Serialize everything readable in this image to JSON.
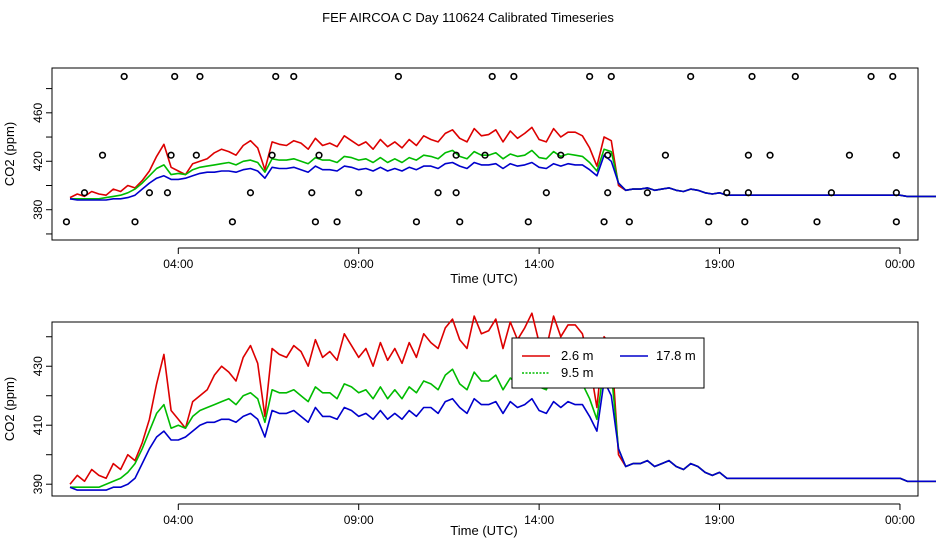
{
  "title": "FEF AIRCOA C  Day 110624  Calibrated Timeseries",
  "colors": {
    "s26": "#dd0000",
    "s95": "#00bb00",
    "s178": "#0000cc",
    "axis": "#000000"
  },
  "chart_data": [
    {
      "type": "line+scatter",
      "panel": "top",
      "xlabel": "Time (UTC)",
      "ylabel": "CO2 (ppm)",
      "x_unit": "hours since 00:00 UTC",
      "xlim": [
        0.5,
        24.5
      ],
      "ylim": [
        355,
        497
      ],
      "x_ticks": [
        {
          "value": 4,
          "label": "04:00"
        },
        {
          "value": 9,
          "label": "09:00"
        },
        {
          "value": 14,
          "label": "14:00"
        },
        {
          "value": 19,
          "label": "19:00"
        },
        {
          "value": 24,
          "label": "00:00"
        }
      ],
      "y_ticks": [
        {
          "value": 380,
          "label": "380"
        },
        {
          "value": 420,
          "label": "420"
        },
        {
          "value": 460,
          "label": "460"
        }
      ],
      "y_ticks_minor": [
        360,
        400,
        440,
        480
      ],
      "circles": {
        "name": "calibration/flag points",
        "points": [
          [
            0.9,
            370
          ],
          [
            1.4,
            394
          ],
          [
            1.9,
            425
          ],
          [
            2.5,
            490
          ],
          [
            2.8,
            370
          ],
          [
            3.2,
            394
          ],
          [
            3.7,
            394
          ],
          [
            3.9,
            490
          ],
          [
            3.8,
            425
          ],
          [
            4.5,
            425
          ],
          [
            4.6,
            490
          ],
          [
            5.5,
            370
          ],
          [
            6.0,
            394
          ],
          [
            6.6,
            425
          ],
          [
            6.7,
            490
          ],
          [
            7.2,
            490
          ],
          [
            7.8,
            370
          ],
          [
            7.7,
            394
          ],
          [
            7.9,
            425
          ],
          [
            8.4,
            370
          ],
          [
            9.0,
            394
          ],
          [
            10.1,
            490
          ],
          [
            10.6,
            370
          ],
          [
            11.2,
            394
          ],
          [
            11.8,
            370
          ],
          [
            11.7,
            394
          ],
          [
            11.7,
            425
          ],
          [
            12.5,
            425
          ],
          [
            12.7,
            490
          ],
          [
            13.3,
            490
          ],
          [
            13.7,
            370
          ],
          [
            14.2,
            394
          ],
          [
            14.6,
            425
          ],
          [
            15.4,
            490
          ],
          [
            15.8,
            370
          ],
          [
            15.9,
            425
          ],
          [
            15.9,
            394
          ],
          [
            16.0,
            490
          ],
          [
            16.5,
            370
          ],
          [
            17.0,
            394
          ],
          [
            17.5,
            425
          ],
          [
            18.2,
            490
          ],
          [
            18.7,
            370
          ],
          [
            19.2,
            394
          ],
          [
            19.7,
            370
          ],
          [
            19.8,
            394
          ],
          [
            19.8,
            425
          ],
          [
            19.9,
            490
          ],
          [
            20.4,
            425
          ],
          [
            21.1,
            490
          ],
          [
            21.7,
            370
          ],
          [
            22.1,
            394
          ],
          [
            22.6,
            425
          ],
          [
            23.2,
            490
          ],
          [
            23.8,
            490
          ],
          [
            23.9,
            425
          ],
          [
            23.9,
            394
          ],
          [
            23.9,
            370
          ]
        ]
      },
      "series": [
        {
          "name": "2.6 m",
          "color": "#dd0000",
          "kind": "inlet1"
        },
        {
          "name": "9.5 m",
          "color": "#00bb00",
          "kind": "inlet2"
        },
        {
          "name": "17.8 m",
          "color": "#0000cc",
          "kind": "inlet3"
        }
      ]
    },
    {
      "type": "line",
      "panel": "bottom",
      "xlabel": "Time (UTC)",
      "ylabel": "CO2 (ppm)",
      "x_unit": "hours since 00:00 UTC",
      "xlim": [
        0.5,
        24.5
      ],
      "ylim": [
        386,
        445
      ],
      "x_ticks": [
        {
          "value": 4,
          "label": "04:00"
        },
        {
          "value": 9,
          "label": "09:00"
        },
        {
          "value": 14,
          "label": "14:00"
        },
        {
          "value": 19,
          "label": "19:00"
        },
        {
          "value": 24,
          "label": "00:00"
        }
      ],
      "y_ticks": [
        {
          "value": 390,
          "label": "390"
        },
        {
          "value": 410,
          "label": "410"
        },
        {
          "value": 430,
          "label": "430"
        }
      ],
      "y_ticks_minor": [
        400,
        420,
        440
      ],
      "legend": {
        "position": "top-right of plotting region",
        "entries": [
          {
            "label": "2.6 m",
            "color": "#dd0000",
            "style": "solid"
          },
          {
            "label": "17.8 m",
            "color": "#0000cc",
            "style": "solid"
          },
          {
            "label": "9.5 m",
            "color": "#00bb00",
            "style": "dotted"
          }
        ]
      },
      "series": [
        {
          "name": "2.6 m",
          "color": "#dd0000",
          "kind": "inlet1"
        },
        {
          "name": "9.5 m",
          "color": "#00bb00",
          "kind": "inlet2"
        },
        {
          "name": "17.8 m",
          "color": "#0000cc",
          "kind": "inlet3"
        }
      ]
    }
  ],
  "series_values": {
    "x_start": 1.0,
    "x_step": 0.2,
    "inlet1": [
      390,
      393,
      391,
      395,
      393,
      392,
      397,
      395,
      400,
      398,
      404,
      412,
      424,
      434,
      415,
      412,
      409,
      418,
      420,
      422,
      427,
      430,
      428,
      425,
      433,
      437,
      431,
      413,
      436,
      434,
      433,
      437,
      435,
      430,
      439,
      433,
      435,
      432,
      441,
      437,
      433,
      436,
      430,
      438,
      432,
      436,
      431,
      438,
      433,
      441,
      438,
      436,
      443,
      446,
      439,
      436,
      447,
      441,
      442,
      446,
      436,
      445,
      439,
      443,
      448,
      438,
      436,
      447,
      440,
      444,
      444,
      441,
      431,
      416,
      440,
      437,
      400,
      396,
      397,
      397,
      398,
      396,
      397,
      398,
      396,
      395,
      397,
      396,
      394,
      393,
      394,
      392,
      392,
      392,
      392,
      392,
      392,
      392,
      392,
      392,
      392,
      392,
      392,
      392,
      392,
      392,
      392,
      392,
      392,
      392,
      392,
      392,
      392,
      392,
      392,
      392,
      391,
      391,
      391,
      391,
      391,
      391
    ],
    "inlet2": [
      389,
      389,
      389,
      389,
      389,
      390,
      391,
      392,
      394,
      397,
      402,
      408,
      414,
      417,
      409,
      410,
      409,
      413,
      415,
      416,
      417,
      418,
      419,
      417,
      420,
      421,
      419,
      411,
      422,
      421,
      421,
      422,
      420,
      418,
      423,
      421,
      421,
      419,
      424,
      423,
      421,
      422,
      419,
      423,
      419,
      422,
      419,
      423,
      421,
      425,
      424,
      422,
      427,
      429,
      424,
      422,
      428,
      425,
      425,
      427,
      422,
      426,
      424,
      425,
      429,
      423,
      422,
      428,
      424,
      426,
      425,
      424,
      419,
      412,
      430,
      428,
      402,
      396,
      397,
      397,
      398,
      396,
      397,
      398,
      396,
      395,
      397,
      396,
      394,
      393,
      394,
      392,
      392,
      392,
      392,
      392,
      392,
      392,
      392,
      392,
      392,
      392,
      392,
      392,
      392,
      392,
      392,
      392,
      392,
      392,
      392,
      392,
      392,
      392,
      392,
      392,
      391,
      391,
      391,
      391,
      391,
      391
    ],
    "inlet3": [
      389,
      388,
      388,
      388,
      388,
      388,
      389,
      389,
      390,
      392,
      397,
      402,
      406,
      408,
      405,
      405,
      406,
      408,
      410,
      411,
      411,
      412,
      412,
      411,
      413,
      414,
      412,
      406,
      415,
      414,
      414,
      415,
      413,
      411,
      416,
      413,
      413,
      412,
      416,
      415,
      413,
      414,
      412,
      415,
      412,
      414,
      412,
      415,
      413,
      416,
      416,
      414,
      418,
      419,
      416,
      414,
      419,
      417,
      417,
      418,
      414,
      418,
      416,
      417,
      419,
      415,
      414,
      418,
      416,
      418,
      417,
      417,
      413,
      408,
      425,
      420,
      402,
      396,
      397,
      397,
      398,
      396,
      397,
      398,
      396,
      395,
      397,
      396,
      394,
      393,
      394,
      392,
      392,
      392,
      392,
      392,
      392,
      392,
      392,
      392,
      392,
      392,
      392,
      392,
      392,
      392,
      392,
      392,
      392,
      392,
      392,
      392,
      392,
      392,
      392,
      392,
      391,
      391,
      391,
      391,
      391,
      391
    ]
  }
}
